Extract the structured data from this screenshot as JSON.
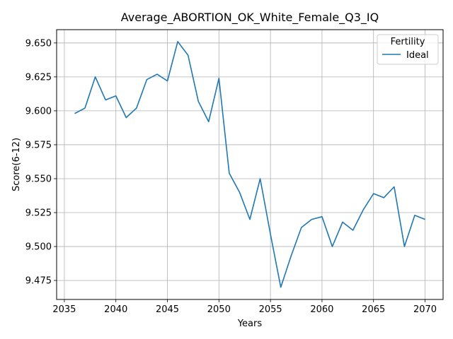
{
  "chart_data": {
    "type": "line",
    "title": "Average_ABORTION_OK_White_Female_Q3_IQ",
    "xlabel": "Years",
    "ylabel": "Score(6-12)",
    "xlim": [
      2034.25,
      2071.75
    ],
    "ylim": [
      9.461,
      9.6598
    ],
    "grid": true,
    "legend": {
      "title": "Fertility",
      "placement": "top-right"
    },
    "xticks": [
      2035,
      2040,
      2045,
      2050,
      2055,
      2060,
      2065,
      2070
    ],
    "yticks": [
      9.475,
      9.5,
      9.525,
      9.55,
      9.575,
      9.6,
      9.625,
      9.65
    ],
    "xtick_labels": [
      "2035",
      "2040",
      "2045",
      "2050",
      "2055",
      "2060",
      "2065",
      "2070"
    ],
    "ytick_labels": [
      "9.475",
      "9.500",
      "9.525",
      "9.550",
      "9.575",
      "9.600",
      "9.625",
      "9.650"
    ],
    "series": [
      {
        "name": "Ideal",
        "color": "#1f77b4",
        "x": [
          2036,
          2037,
          2038,
          2039,
          2040,
          2041,
          2042,
          2043,
          2044,
          2045,
          2046,
          2047,
          2048,
          2049,
          2050,
          2051,
          2052,
          2053,
          2054,
          2055,
          2056,
          2057,
          2058,
          2059,
          2060,
          2061,
          2062,
          2063,
          2064,
          2065,
          2066,
          2067,
          2068,
          2069,
          2070
        ],
        "y": [
          9.598,
          9.602,
          9.625,
          9.608,
          9.611,
          9.595,
          9.602,
          9.623,
          9.627,
          9.622,
          9.651,
          9.641,
          9.607,
          9.592,
          9.624,
          9.554,
          9.54,
          9.52,
          9.55,
          9.509,
          9.47,
          9.493,
          9.514,
          9.52,
          9.522,
          9.5,
          9.518,
          9.512,
          9.527,
          9.539,
          9.536,
          9.544,
          9.5,
          9.523,
          9.52
        ]
      }
    ]
  }
}
